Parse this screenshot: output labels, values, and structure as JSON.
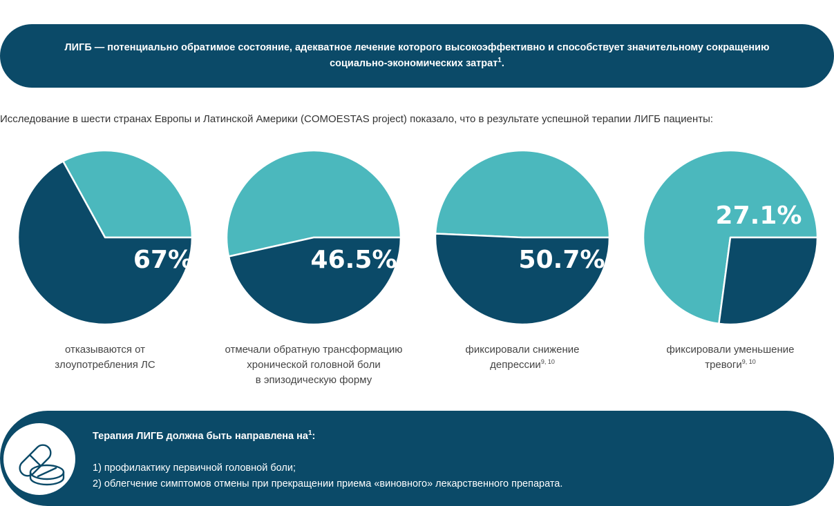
{
  "banner": {
    "text": "ЛИГБ — потенциально обратимое состояние, адекватное лечение которого высокоэффективно и способствует значительному сокращению социально-экономических затрат",
    "ref": "1",
    "end": "."
  },
  "intro": "Исследование в шести странах Европы и Латинской Америки (COMOESTAS project) показало, что в результате успешной терапии ЛИГБ пациенты:",
  "colors": {
    "dark": "#0b4a68",
    "light": "#4bb8bd"
  },
  "chart_data": [
    {
      "type": "pie",
      "values": [
        67,
        33
      ],
      "value_label": "67%",
      "caption_lines": [
        "отказываются от",
        "злоупотребления ЛС"
      ],
      "caption_ref": ""
    },
    {
      "type": "pie",
      "values": [
        46.5,
        53.5
      ],
      "value_label": "46.5%",
      "caption_lines": [
        "отмечали обратную трансформацию",
        "хронической головной боли",
        "в эпизодическую форму"
      ],
      "caption_ref": ""
    },
    {
      "type": "pie",
      "values": [
        50.7,
        49.3
      ],
      "value_label": "50.7%",
      "caption_lines": [
        "фиксировали снижение",
        "депрессии"
      ],
      "caption_ref": "9, 10"
    },
    {
      "type": "pie",
      "values": [
        27.1,
        72.9
      ],
      "value_label": "27.1%",
      "caption_lines": [
        "фиксировали уменьшение",
        "тревоги"
      ],
      "caption_ref": "9, 10"
    }
  ],
  "bottom": {
    "heading": "Терапия ЛИГБ должна быть направлена на",
    "heading_ref": "1",
    "heading_end": ":",
    "items": [
      "1) профилактику первичной головной боли;",
      "2) облегчение симптомов отмены при прекращении приема «виновного» лекарственного препарата."
    ],
    "icon": "pills-icon"
  }
}
